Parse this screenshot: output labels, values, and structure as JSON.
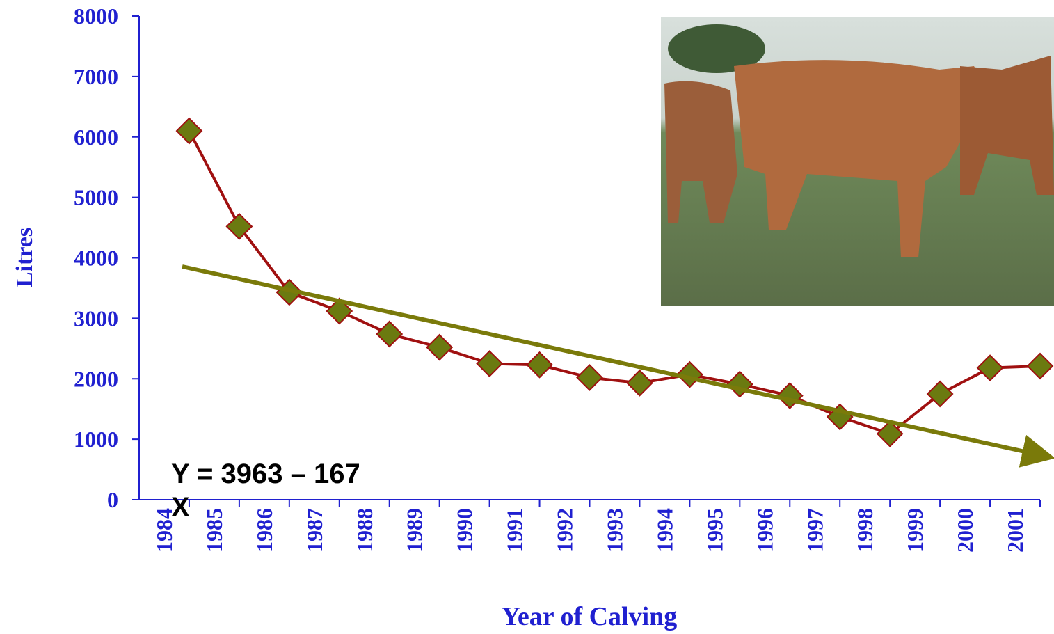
{
  "chart_data": {
    "type": "line",
    "x_label": "Year of Calving",
    "y_label": "Litres",
    "categories": [
      "1984",
      "1985",
      "1986",
      "1987",
      "1988",
      "1989",
      "1990",
      "1991",
      "1992",
      "1993",
      "1994",
      "1995",
      "1996",
      "1997",
      "1998",
      "1999",
      "2000",
      "2001"
    ],
    "series": [
      {
        "name": "Litres",
        "color": "#a01010",
        "marker_color": "#6b7a10",
        "values": [
          6100,
          4520,
          3430,
          3120,
          2740,
          2520,
          2250,
          2230,
          2020,
          1930,
          2070,
          1910,
          1720,
          1370,
          1090,
          1750,
          2180,
          2210
        ]
      }
    ],
    "ylim": [
      0,
      8000
    ],
    "yticks": [
      0,
      1000,
      2000,
      3000,
      4000,
      5000,
      6000,
      7000,
      8000
    ],
    "annotation": "Y = 3963 – 167 X"
  }
}
